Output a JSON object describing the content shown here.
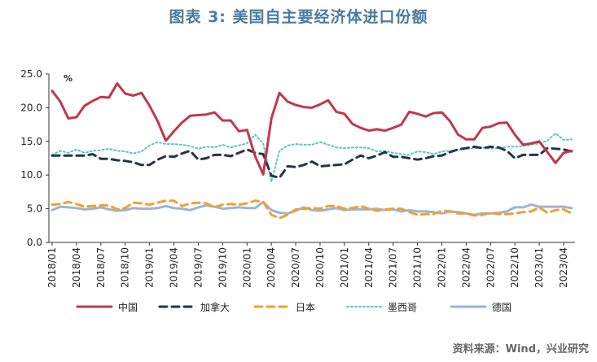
{
  "header": {
    "title": "图表 3:    美国自主要经济体进口份额"
  },
  "footer": {
    "source": "资料来源：Wind，兴业研究"
  },
  "chart_data": {
    "type": "line",
    "unit_label": "%",
    "ylim": [
      0,
      25
    ],
    "yticks": [
      "0.0",
      "5.0",
      "10.0",
      "15.0",
      "20.0",
      "25.0"
    ],
    "xtick_labels": [
      "2018/01",
      "2018/04",
      "2018/07",
      "2018/10",
      "2019/01",
      "2019/04",
      "2019/07",
      "2019/10",
      "2020/01",
      "2020/04",
      "2020/07",
      "2020/10",
      "2021/01",
      "2021/04",
      "2021/07",
      "2021/10",
      "2022/01",
      "2022/04",
      "2022/07",
      "2022/10",
      "2023/01",
      "2023/04"
    ],
    "grid": false,
    "legend_position": "bottom",
    "series": [
      {
        "name": "中国",
        "color": "#c0394a",
        "style": "solid",
        "values": [
          22.5,
          20.9,
          18.4,
          18.6,
          20.3,
          21.0,
          21.6,
          21.5,
          23.6,
          22.1,
          21.8,
          22.2,
          20.3,
          18.0,
          15.1,
          16.5,
          17.8,
          18.8,
          18.9,
          19.0,
          19.3,
          18.1,
          18.1,
          16.5,
          16.7,
          12.8,
          10.1,
          18.4,
          22.2,
          20.9,
          20.4,
          20.1,
          20.0,
          20.5,
          21.1,
          19.4,
          19.1,
          17.6,
          17.0,
          16.6,
          16.8,
          16.6,
          17.0,
          17.5,
          19.4,
          19.1,
          18.7,
          19.2,
          19.3,
          18.0,
          16.0,
          15.3,
          15.3,
          17.0,
          17.2,
          17.7,
          17.8,
          16.0,
          14.5,
          14.7,
          15.0,
          13.4,
          11.8,
          13.3,
          13.6
        ]
      },
      {
        "name": "加拿大",
        "color": "#23354e",
        "style": "dashed",
        "values": [
          12.9,
          12.9,
          12.9,
          12.9,
          12.9,
          13.1,
          12.4,
          12.4,
          12.2,
          12.1,
          11.9,
          11.5,
          11.5,
          12.3,
          12.8,
          12.7,
          13.2,
          13.6,
          12.3,
          12.5,
          13.0,
          13.0,
          12.8,
          13.3,
          13.8,
          13.3,
          13.1,
          9.9,
          9.6,
          11.3,
          11.2,
          11.5,
          12.0,
          11.3,
          11.4,
          11.5,
          11.6,
          12.3,
          12.9,
          12.5,
          12.9,
          13.4,
          12.7,
          12.7,
          12.5,
          12.3,
          12.5,
          12.8,
          12.9,
          13.4,
          13.8,
          14.0,
          14.2,
          14.0,
          14.2,
          14.1,
          13.6,
          12.5,
          13.0,
          13.0,
          13.0,
          14.0,
          13.9,
          13.8,
          13.5
        ]
      },
      {
        "name": "日本",
        "color": "#f0a030",
        "style": "dashed",
        "values": [
          5.6,
          5.7,
          6.0,
          5.7,
          5.3,
          5.4,
          5.5,
          5.5,
          4.9,
          5.1,
          5.9,
          5.8,
          5.6,
          5.9,
          6.2,
          6.2,
          5.4,
          5.8,
          5.9,
          5.8,
          5.2,
          5.6,
          5.7,
          5.6,
          5.8,
          6.2,
          6.0,
          4.1,
          3.6,
          4.1,
          4.9,
          5.0,
          5.1,
          5.0,
          5.4,
          5.4,
          5.0,
          5.1,
          5.4,
          5.0,
          4.7,
          4.9,
          5.0,
          5.0,
          4.5,
          4.1,
          4.2,
          4.2,
          4.7,
          4.6,
          4.3,
          4.3,
          4.0,
          4.1,
          4.4,
          4.2,
          4.2,
          4.3,
          4.5,
          4.6,
          5.2,
          4.4,
          4.8,
          4.9,
          4.3
        ]
      },
      {
        "name": "墨西哥",
        "color": "#56c6c0",
        "style": "dotted",
        "values": [
          13.0,
          13.6,
          13.3,
          13.8,
          13.3,
          13.6,
          13.7,
          13.9,
          13.6,
          13.5,
          13.2,
          13.5,
          14.4,
          14.9,
          14.6,
          14.6,
          14.5,
          14.3,
          13.9,
          14.2,
          14.1,
          14.5,
          14.1,
          14.4,
          14.7,
          16.0,
          14.7,
          9.0,
          13.6,
          14.4,
          14.6,
          14.5,
          14.5,
          14.9,
          14.5,
          14.1,
          14.0,
          14.1,
          14.1,
          14.0,
          13.5,
          13.6,
          13.3,
          13.1,
          13.0,
          13.5,
          13.4,
          13.1,
          13.5,
          13.6,
          13.7,
          13.9,
          14.0,
          14.1,
          13.9,
          14.0,
          14.2,
          14.2,
          14.3,
          14.5,
          14.7,
          15.1,
          16.2,
          15.2,
          15.3
        ]
      },
      {
        "name": "德国",
        "color": "#9ab5d3",
        "style": "solid",
        "values": [
          4.8,
          5.3,
          5.2,
          5.1,
          4.9,
          5.0,
          5.2,
          4.9,
          4.7,
          4.8,
          5.1,
          5.0,
          5.0,
          5.1,
          5.4,
          5.1,
          5.0,
          4.8,
          5.2,
          5.5,
          5.3,
          5.0,
          5.1,
          5.2,
          5.1,
          5.1,
          6.0,
          4.8,
          4.4,
          4.3,
          4.7,
          5.2,
          4.8,
          4.7,
          4.9,
          5.1,
          4.8,
          4.9,
          4.9,
          4.9,
          5.0,
          4.8,
          4.9,
          4.6,
          4.8,
          4.6,
          4.6,
          4.5,
          4.3,
          4.6,
          4.5,
          4.3,
          4.1,
          4.3,
          4.3,
          4.4,
          4.6,
          5.2,
          5.2,
          5.6,
          5.3,
          5.3,
          5.3,
          5.3,
          5.1
        ]
      }
    ]
  }
}
